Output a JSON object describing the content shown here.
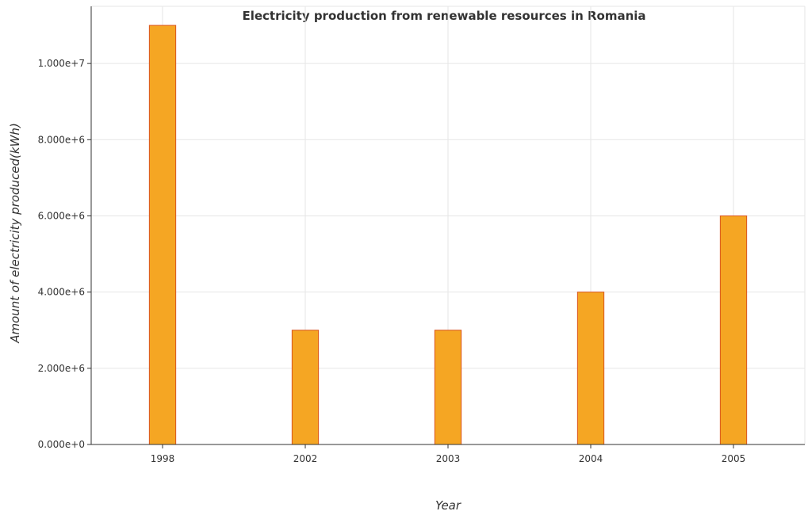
{
  "chart_data": {
    "type": "bar",
    "title": "Electricity production from renewable resources in Romania",
    "xlabel": "Year",
    "ylabel": "Amount of electricity produced(kWh)",
    "categories": [
      "1998",
      "2002",
      "2003",
      "2004",
      "2005"
    ],
    "values": [
      11000000,
      3000000,
      3000000,
      4000000,
      6000000
    ],
    "ylim": [
      0,
      11500000
    ],
    "yticks": [
      0,
      2000000,
      4000000,
      6000000,
      8000000,
      10000000
    ],
    "ytick_labels": [
      "0.000e+0",
      "2.000e+6",
      "4.000e+6",
      "6.000e+6",
      "8.000e+6",
      "1.000e+7"
    ],
    "grid": true,
    "bar_color": "#f5a623",
    "bar_edge_color": "#d9541e"
  }
}
